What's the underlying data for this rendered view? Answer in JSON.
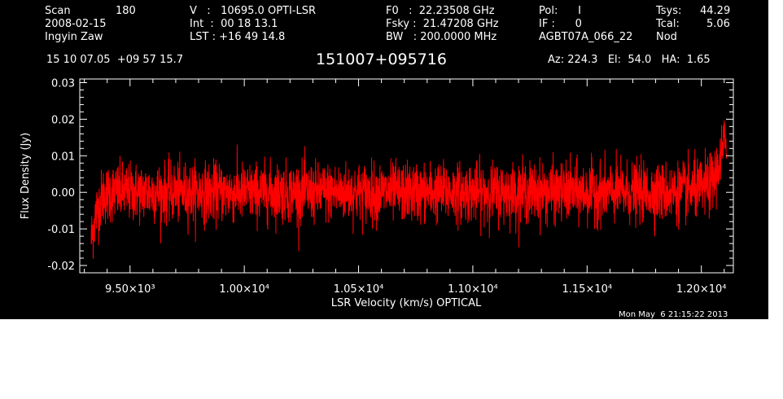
{
  "colors": {
    "background": "#000000",
    "foreground": "#ffffff",
    "trace": "#ff0000"
  },
  "header": {
    "scan_label": "Scan",
    "scan_value": "180",
    "date": "2008-02-15",
    "observer": "Ingyin Zaw",
    "v_line": "V   :   10695.0 OPTI-LSR",
    "int_line": "Int  :  00 18 13.1",
    "lst_line": "LST : +16 49 14.8",
    "f0_line": "F0   :  22.23508 GHz",
    "fsky_line": "Fsky :  21.47208 GHz",
    "bw_line": "BW   : 200.0000 MHz",
    "pol_line": "Pol:      I",
    "if_line": "IF :      0",
    "project": "AGBT07A_066_22",
    "tsys_label": "Tsys:",
    "tsys_value": "44.29",
    "tcal_label": "Tcal:",
    "tcal_value": "5.06",
    "nod": "Nod",
    "coords": "15 10 07.05  +09 57 15.7",
    "source": "151007+095716",
    "az_el_ha": "Az: 224.3   El:  54.0   HA:  1.65"
  },
  "footer": {
    "timestamp": "Mon May  6 21:15:22 2013"
  },
  "chart_data": {
    "type": "line",
    "xlabel": "LSR Velocity (km/s) OPTICAL",
    "ylabel": "Flux Density (Jy)",
    "xlim": [
      9280,
      12140
    ],
    "ylim": [
      -0.022,
      0.031
    ],
    "x_ticks": [
      {
        "value": 9500,
        "label": "9.50×10³"
      },
      {
        "value": 10000,
        "label": "1.00×10⁴"
      },
      {
        "value": 10500,
        "label": "1.05×10⁴"
      },
      {
        "value": 11000,
        "label": "1.10×10⁴"
      },
      {
        "value": 11500,
        "label": "1.15×10⁴"
      },
      {
        "value": 12000,
        "label": "1.20×10⁴"
      }
    ],
    "y_ticks": [
      {
        "value": 0.03,
        "label": "0.03"
      },
      {
        "value": 0.02,
        "label": "0.02"
      },
      {
        "value": 0.01,
        "label": "0.01"
      },
      {
        "value": 0.0,
        "label": "0.00"
      },
      {
        "value": -0.01,
        "label": "-0.01"
      },
      {
        "value": -0.02,
        "label": "-0.02"
      }
    ],
    "series": [
      {
        "x_start": 9330,
        "x_end": 12110,
        "x": [
          9330,
          9350,
          9380,
          9420,
          9500,
          9600,
          9700,
          9800,
          9900,
          10000,
          10100,
          10200,
          10300,
          10400,
          10500,
          10600,
          10700,
          10800,
          10900,
          11000,
          11100,
          11200,
          11300,
          11400,
          11500,
          11600,
          11700,
          11800,
          11900,
          12000,
          12050,
          12080,
          12100,
          12110
        ],
        "baseline": [
          -0.013,
          -0.006,
          -0.001,
          0.0,
          0.0,
          0.0,
          0.0,
          0.0,
          0.0,
          0.0,
          0.0,
          0.0,
          0.0,
          0.0,
          0.0,
          0.0,
          0.0,
          0.0,
          0.0,
          0.0,
          0.0,
          0.0,
          0.0,
          0.0,
          0.0,
          0.0,
          0.0,
          0.0,
          0.0,
          0.001,
          0.003,
          0.008,
          0.013,
          0.016
        ],
        "noise_rms": 0.004,
        "min": -0.019,
        "max": 0.024
      }
    ]
  }
}
